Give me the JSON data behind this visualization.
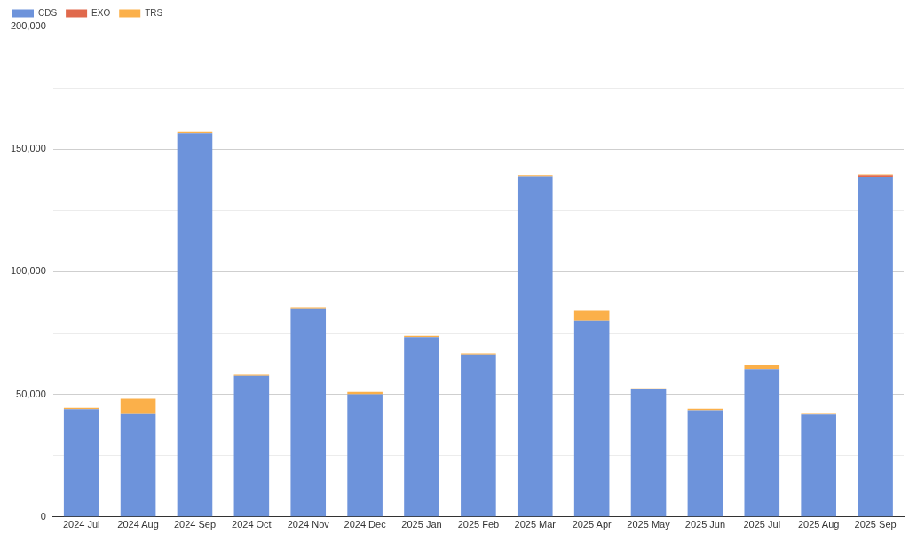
{
  "chart_data": {
    "type": "bar",
    "stacked": true,
    "legend": "top left",
    "grid": "y",
    "categories": [
      "2024 Jul",
      "2024 Aug",
      "2024 Sep",
      "2024 Oct",
      "2024 Nov",
      "2024 Dec",
      "2025 Jan",
      "2025 Feb",
      "2025 Mar",
      "2025 Apr",
      "2025 May",
      "2025 Jun",
      "2025 Jul",
      "2025 Aug",
      "2025 Sep"
    ],
    "series": [
      {
        "name": "CDS",
        "color": "#6d93db",
        "values": [
          44000,
          42000,
          156500,
          57500,
          85000,
          50000,
          73300,
          66200,
          139000,
          80000,
          52000,
          43500,
          60300,
          41800,
          138500
        ]
      },
      {
        "name": "EXO",
        "color": "#e0694c",
        "values": [
          0,
          0,
          0,
          0,
          0,
          0,
          0,
          0,
          0,
          0,
          0,
          0,
          0,
          0,
          1000
        ]
      },
      {
        "name": "TRS",
        "color": "#fbb04a",
        "values": [
          500,
          6200,
          500,
          500,
          500,
          1000,
          500,
          500,
          500,
          4000,
          500,
          700,
          1700,
          300,
          300
        ]
      }
    ],
    "ylim": [
      0,
      200000
    ],
    "yticks": [
      0,
      {
        "value": 25000,
        "label": null
      },
      {
        "value": 50000,
        "label": "50,000"
      },
      {
        "value": 75000,
        "label": null
      },
      {
        "value": 100000,
        "label": "100,000"
      },
      {
        "value": 125000,
        "label": null
      },
      {
        "value": 150000,
        "label": "150,000"
      },
      {
        "value": 175000,
        "label": null
      },
      {
        "value": 200000,
        "label": "200,000"
      }
    ]
  }
}
